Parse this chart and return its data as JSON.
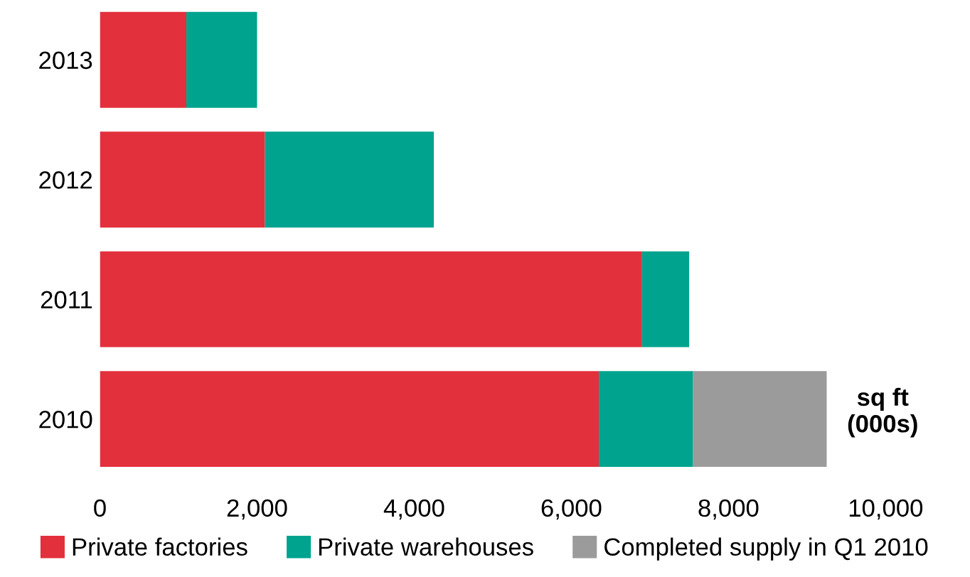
{
  "chart_data": {
    "type": "bar",
    "orientation": "horizontal",
    "stacked": true,
    "categories": [
      "2013",
      "2012",
      "2011",
      "2010"
    ],
    "series": [
      {
        "name": "Private factories",
        "color": "#e2303c",
        "values": [
          1100,
          2100,
          6900,
          6350
        ]
      },
      {
        "name": "Private warehouses",
        "color": "#00a38e",
        "values": [
          900,
          2150,
          600,
          1200
        ]
      },
      {
        "name": "Completed supply in Q1 2010",
        "color": "#9b9b9b",
        "values": [
          null,
          null,
          null,
          1700
        ]
      }
    ],
    "xlim": [
      0,
      10000
    ],
    "xticks": [
      {
        "value": 0,
        "label": "0"
      },
      {
        "value": 2000,
        "label": "2,000"
      },
      {
        "value": 4000,
        "label": "4,000"
      },
      {
        "value": 6000,
        "label": "6,000"
      },
      {
        "value": 8000,
        "label": "8,000"
      },
      {
        "value": 10000,
        "label": "10,000"
      }
    ],
    "annotations": [
      "sq ft\n(000s)"
    ],
    "grid": false,
    "legend": "bottom"
  }
}
